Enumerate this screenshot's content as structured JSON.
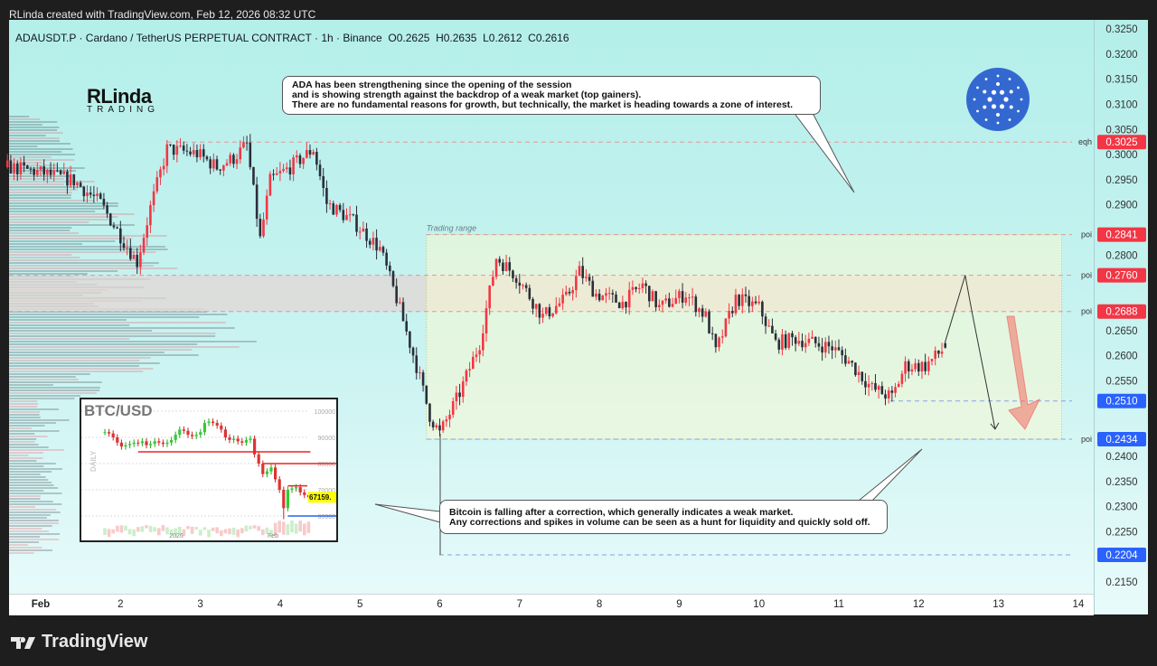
{
  "attribution": "RLinda created with TradingView.com, Feb 12, 2026 08:32 UTC",
  "legend": {
    "symbol": "ADAUSDT.P · Cardano / TetherUS PERPETUAL CONTRACT · 1h · Binance",
    "ohlc": "O0.2625  H0.2635  L0.2612  C0.2616"
  },
  "logo": {
    "line1": "RLinda",
    "line2": "TRADING"
  },
  "brand": "TradingView",
  "colors": {
    "up": "#f23645",
    "down": "#2a2e39",
    "level_red": "#f23645",
    "level_blue": "#2962ff",
    "cardano": "#3468d1",
    "range_fill": "#f3f7d6",
    "zone_fill": "#e8d8d2"
  },
  "icons": {
    "cardano": "cardano-logo-icon",
    "brand": "tradingview-logo-icon"
  },
  "annotations": {
    "top_note": [
      "ADA has been strengthening since the opening of the session",
      "and is showing strength against the backdrop of a weak market (top gainers).",
      "There are no fundamental reasons for growth, but technically, the market is heading towards a zone of interest."
    ],
    "bottom_note": [
      "Bitcoin is falling after a correction, which generally indicates a weak market.",
      "Any corrections and spikes in volume can be seen as a hunt for liquidity and quickly sold off."
    ],
    "range_label": "Trading range"
  },
  "chart_data": [
    {
      "type": "candlestick",
      "timeframe": "1h",
      "y_ticks": [
        "0.3250",
        "0.3200",
        "0.3150",
        "0.3100",
        "0.3050",
        "0.3000",
        "0.2950",
        "0.2900",
        "0.2850",
        "0.2800",
        "0.2750",
        "0.2700",
        "0.2650",
        "0.2600",
        "0.2550",
        "0.2500",
        "0.2450",
        "0.2400",
        "0.2350",
        "0.2300",
        "0.2250",
        "0.2200",
        "0.2150"
      ],
      "ylim": [
        0.2125,
        0.3265
      ],
      "x_ticks": [
        "Feb",
        "2",
        "3",
        "4",
        "5",
        "6",
        "7",
        "8",
        "9",
        "10",
        "11",
        "12",
        "13",
        "14"
      ],
      "xlim": [
        "2026-01-31T12:00",
        "2026-02-14T08:00"
      ],
      "price_path": [
        [
          "2026-01-31T14:00",
          0.2975
        ],
        [
          "2026-01-31T23:00",
          0.2966
        ],
        [
          "2026-02-01T10:00",
          0.2948
        ],
        [
          "2026-02-01T18:00",
          0.2903
        ],
        [
          "2026-02-01T23:00",
          0.2849
        ],
        [
          "2026-02-02T05:00",
          0.2786
        ],
        [
          "2026-02-02T09:00",
          0.2894
        ],
        [
          "2026-02-02T14:00",
          0.3011
        ],
        [
          "2026-02-02T23:00",
          0.3002
        ],
        [
          "2026-02-03T05:00",
          0.2975
        ],
        [
          "2026-02-03T10:00",
          0.2993
        ],
        [
          "2026-02-03T14:00",
          0.302
        ],
        [
          "2026-02-03T18:00",
          0.2831
        ],
        [
          "2026-02-03T21:00",
          0.2948
        ],
        [
          "2026-02-04T03:00",
          0.2975
        ],
        [
          "2026-02-04T10:00",
          0.3011
        ],
        [
          "2026-02-04T14:00",
          0.2903
        ],
        [
          "2026-02-04T22:00",
          0.2867
        ],
        [
          "2026-02-05T06:00",
          0.2813
        ],
        [
          "2026-02-05T11:00",
          0.2714
        ],
        [
          "2026-02-05T17:00",
          0.258
        ],
        [
          "2026-02-05T21:00",
          0.2481
        ],
        [
          "2026-02-06T00:00",
          0.2445
        ],
        [
          "2026-02-06T06:00",
          0.2526
        ],
        [
          "2026-02-06T12:00",
          0.2625
        ],
        [
          "2026-02-06T17:00",
          0.2795
        ],
        [
          "2026-02-06T23:00",
          0.2759
        ],
        [
          "2026-02-07T07:00",
          0.2678
        ],
        [
          "2026-02-07T14:00",
          0.2714
        ],
        [
          "2026-02-07T18:00",
          0.2768
        ],
        [
          "2026-02-07T23:00",
          0.2723
        ],
        [
          "2026-02-08T07:00",
          0.2705
        ],
        [
          "2026-02-08T13:00",
          0.2741
        ],
        [
          "2026-02-08T18:00",
          0.2696
        ],
        [
          "2026-02-09T02:00",
          0.2723
        ],
        [
          "2026-02-09T08:00",
          0.2678
        ],
        [
          "2026-02-09T11:00",
          0.2607
        ],
        [
          "2026-02-09T17:00",
          0.2714
        ],
        [
          "2026-02-10T00:00",
          0.2696
        ],
        [
          "2026-02-10T05:00",
          0.2625
        ],
        [
          "2026-02-10T11:00",
          0.2634
        ],
        [
          "2026-02-10T22:00",
          0.2616
        ],
        [
          "2026-02-11T03:00",
          0.2589
        ],
        [
          "2026-02-11T10:00",
          0.2535
        ],
        [
          "2026-02-11T16:00",
          0.2517
        ],
        [
          "2026-02-11T20:00",
          0.258
        ],
        [
          "2026-02-12T02:00",
          0.258
        ],
        [
          "2026-02-12T08:00",
          0.2616
        ]
      ],
      "last": {
        "open": 0.2625,
        "high": 0.2635,
        "low": 0.2612,
        "close": 0.2616
      },
      "projection": [
        [
          "2026-02-12T08:00",
          0.2628
        ],
        [
          "2026-02-12T14:00",
          0.276
        ],
        [
          "2026-02-12T16:00",
          0.2688
        ],
        [
          "2026-02-12T23:00",
          0.2454
        ]
      ],
      "levels": [
        {
          "label": "eqh",
          "price": "0.3025",
          "color": "red"
        },
        {
          "label": "poi",
          "price": "0.2841",
          "color": "red"
        },
        {
          "label": "poi",
          "price": "0.2760",
          "color": "red"
        },
        {
          "label": "poi",
          "price": "0.2688",
          "color": "red"
        },
        {
          "label": "",
          "price": "0.2510",
          "color": "blue"
        },
        {
          "label": "poi",
          "price": "0.2434",
          "color": "blue"
        },
        {
          "label": "",
          "price": "0.2204",
          "color": "blue"
        }
      ],
      "trading_range": {
        "from": "2026-02-05T20:00",
        "to": "2026-02-13T19:00",
        "top": 0.2841,
        "bottom": 0.2434
      },
      "interest_zone": {
        "top": 0.276,
        "bottom": 0.2688
      }
    },
    {
      "type": "candlestick",
      "title": "BTC/USD",
      "timeframe_label": "DAILY",
      "y_ticks": [
        "100000",
        "90000",
        "80000",
        "70000",
        "60000"
      ],
      "x_ticks": [
        "2026",
        "Feb"
      ],
      "closes": [
        92000,
        91500,
        90000,
        88000,
        86500,
        87000,
        87500,
        88000,
        87800,
        88500,
        87000,
        87500,
        88500,
        88000,
        87500,
        88000,
        89000,
        91000,
        93000,
        92500,
        91000,
        90500,
        91000,
        92000,
        95500,
        96000,
        95500,
        94500,
        93000,
        90000,
        89000,
        89500,
        88500,
        88000,
        89000,
        89500,
        83500,
        80000,
        76000,
        77000,
        78500,
        74000,
        70000,
        63000,
        70000,
        70500,
        71000,
        69000,
        68000,
        67159
      ],
      "levels": [
        84500,
        80000,
        71500,
        60000
      ],
      "last_price_label": "67159."
    }
  ]
}
